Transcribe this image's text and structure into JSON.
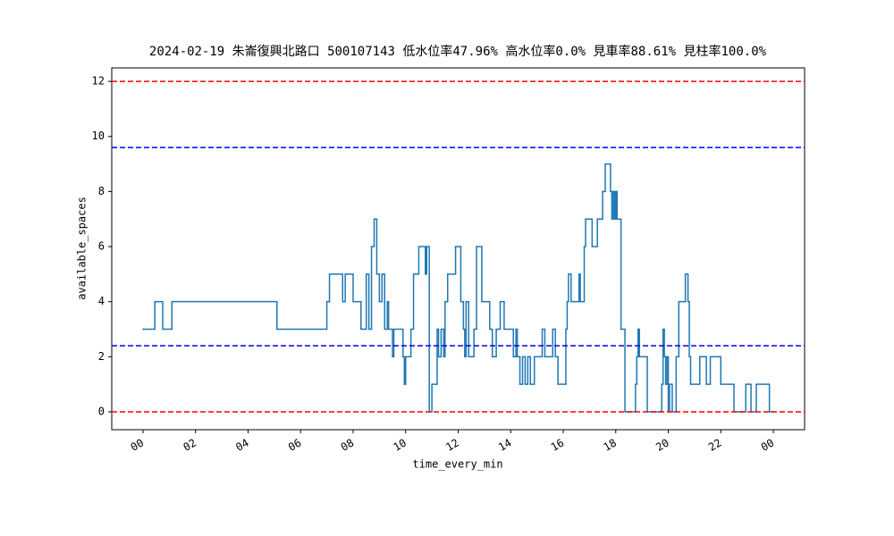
{
  "chart_data": {
    "type": "step",
    "title": "2024-02-19 朱崙復興北路口 500107143 低水位率47.96% 高水位率0.0% 見車率88.61% 見柱率100.0%",
    "x_label": "time_every_min",
    "y_label": "available_spaces",
    "xlim": [
      -1.19,
      25.19
    ],
    "ylim": [
      -0.65,
      12.49
    ],
    "xticks": [
      {
        "value": 0,
        "label": "00"
      },
      {
        "value": 2,
        "label": "02"
      },
      {
        "value": 4,
        "label": "04"
      },
      {
        "value": 6,
        "label": "06"
      },
      {
        "value": 8,
        "label": "08"
      },
      10,
      12,
      14,
      16,
      18,
      20,
      22,
      {
        "value": 24,
        "label": "00"
      }
    ],
    "yticks": [
      0,
      2,
      4,
      6,
      8,
      10,
      12
    ],
    "reference_lines": [
      {
        "value": 12,
        "color": "#ff0000"
      },
      {
        "value": 9.6,
        "color": "#0000ff"
      },
      {
        "value": 2.4,
        "color": "#0000ff"
      },
      {
        "value": 0,
        "color": "#ff0000"
      }
    ],
    "series": [
      {
        "color": "#1f77b4",
        "x": [
          0,
          0.45,
          0.75,
          1.1,
          5.1,
          7.0,
          7.1,
          7.6,
          7.7,
          8.0,
          8.3,
          8.5,
          8.6,
          8.7,
          8.8,
          8.9,
          9.0,
          9.1,
          9.2,
          9.3,
          9.35,
          9.5,
          9.55,
          9.9,
          9.95,
          10.0,
          10.2,
          10.3,
          10.5,
          10.75,
          10.8,
          10.9,
          11.0,
          11.2,
          11.25,
          11.35,
          11.45,
          11.5,
          11.6,
          11.9,
          12.1,
          12.2,
          12.25,
          12.3,
          12.4,
          12.6,
          12.7,
          12.9,
          13.2,
          13.3,
          13.45,
          13.6,
          13.75,
          14.1,
          14.2,
          14.25,
          14.35,
          14.45,
          14.55,
          14.65,
          14.75,
          14.9,
          15.2,
          15.3,
          15.6,
          15.7,
          15.8,
          16.1,
          16.15,
          16.2,
          16.3,
          16.6,
          16.65,
          16.8,
          16.85,
          17.1,
          17.3,
          17.5,
          17.6,
          17.8,
          17.85,
          17.9,
          17.95,
          18.0,
          18.05,
          18.2,
          18.35,
          18.75,
          18.8,
          18.85,
          18.9,
          19.2,
          19.75,
          19.8,
          19.85,
          19.9,
          19.95,
          20.0,
          20.05,
          20.15,
          20.3,
          20.4,
          20.65,
          20.75,
          20.8,
          20.85,
          21.2,
          21.45,
          21.6,
          22.0,
          22.5,
          22.95,
          23.15,
          23.35,
          23.85,
          24.0
        ],
        "values": [
          3,
          4,
          3,
          4,
          3,
          4,
          5,
          4,
          5,
          4,
          3,
          5,
          3,
          6,
          7,
          5,
          4,
          5,
          3,
          4,
          3,
          2,
          3,
          2,
          1,
          2,
          3,
          5,
          6,
          5,
          6,
          0,
          1,
          3,
          2,
          3,
          2,
          4,
          5,
          6,
          4,
          3,
          2,
          4,
          2,
          3,
          6,
          4,
          3,
          2,
          3,
          4,
          3,
          2,
          3,
          2,
          1,
          2,
          1,
          2,
          1,
          2,
          3,
          2,
          3,
          2,
          1,
          3,
          4,
          5,
          4,
          5,
          4,
          6,
          7,
          6,
          7,
          8,
          9,
          8,
          7,
          8,
          7,
          8,
          7,
          3,
          0,
          1,
          2,
          3,
          2,
          0,
          1,
          3,
          2,
          1,
          2,
          0,
          1,
          0,
          2,
          4,
          5,
          4,
          2,
          1,
          2,
          1,
          2,
          1,
          0,
          1,
          0,
          1,
          0,
          0
        ]
      }
    ]
  }
}
